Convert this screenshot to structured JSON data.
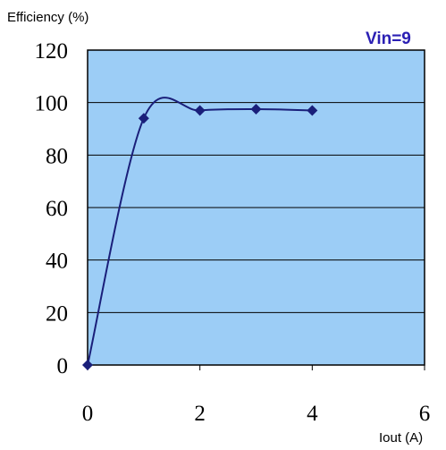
{
  "chart_data": {
    "type": "line",
    "xlabel": "Iout (A)",
    "ylabel": "Efficiency (%)",
    "x_ticks": [
      "0",
      "2",
      "4",
      "6"
    ],
    "y_ticks": [
      "0",
      "20",
      "40",
      "60",
      "80",
      "100",
      "120"
    ],
    "xlim": [
      0,
      6
    ],
    "ylim": [
      0,
      120
    ],
    "grid": "horizontal",
    "series": [
      {
        "name": "Vin=9",
        "x": [
          0,
          1,
          2,
          3,
          4
        ],
        "values": [
          0,
          94,
          97,
          97.5,
          97
        ]
      }
    ],
    "colors": {
      "plot_background": "#9ccdf6",
      "series_line": "#1a1f7a",
      "series_label": "#2b20b4",
      "gridline": "#000000"
    }
  }
}
